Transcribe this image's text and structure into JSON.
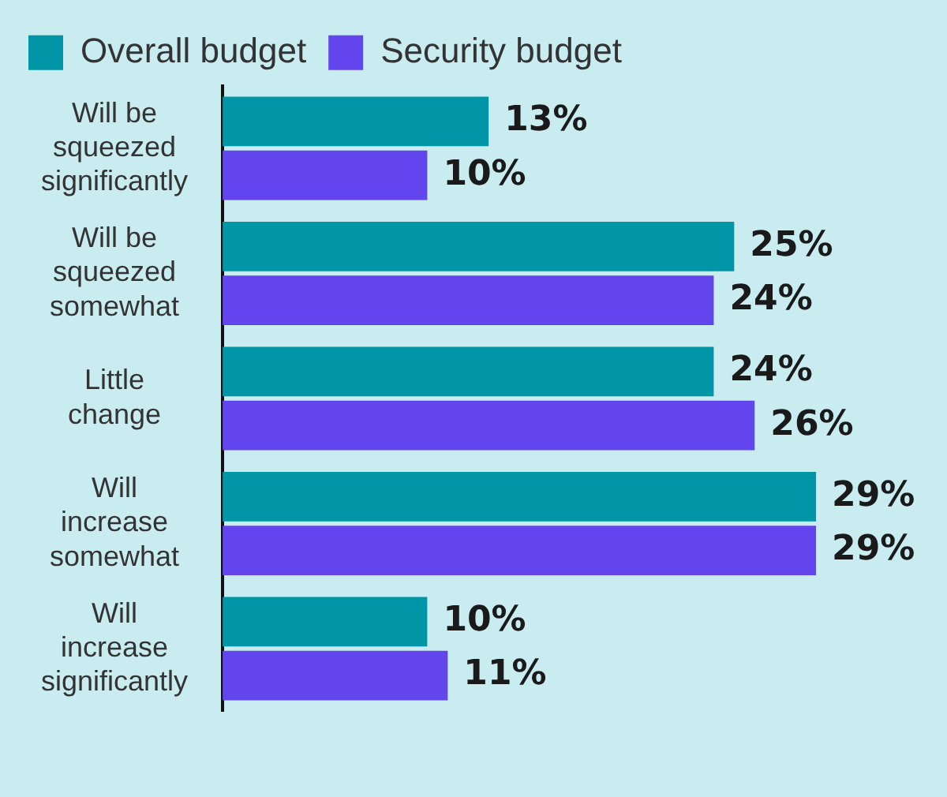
{
  "chart_data": {
    "type": "bar",
    "orientation": "horizontal",
    "categories": [
      "Will be\nsqueezed\nsignificantly",
      "Will be\nsqueezed\nsomewhat",
      "Little\nchange",
      "Will\nincrease\nsomewhat",
      "Will\nincrease\nsignificantly"
    ],
    "series": [
      {
        "name": "Overall budget",
        "color": "#0096a8",
        "values": [
          13,
          25,
          24,
          29,
          10
        ],
        "value_labels": [
          "13%",
          "25%",
          "24%",
          "29%",
          "10%"
        ]
      },
      {
        "name": "Security budget",
        "color": "#6245ec",
        "values": [
          10,
          24,
          26,
          29,
          11
        ],
        "value_labels": [
          "10%",
          "24%",
          "26%",
          "29%",
          "11%"
        ]
      }
    ],
    "tick_labels": "y",
    "legend": "top left"
  }
}
